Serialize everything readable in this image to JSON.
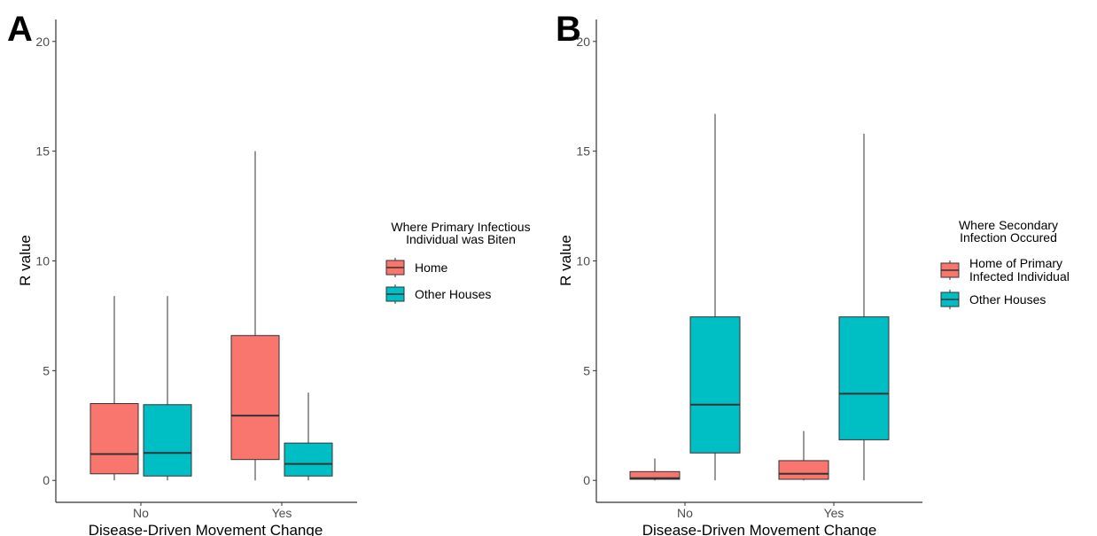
{
  "chart_data": [
    {
      "type": "box",
      "panel_label": "A",
      "xlabel": "Disease-Driven Movement Change",
      "ylabel": "R value",
      "categories": [
        "No",
        "Yes"
      ],
      "ylim": [
        -1,
        21
      ],
      "yticks": [
        0,
        5,
        10,
        15,
        20
      ],
      "legend_title": [
        "Where Primary Infectious",
        "Individual was Biten"
      ],
      "legend_position": "right",
      "grid": false,
      "series": [
        {
          "name": [
            "Home"
          ],
          "color": "#F8766D",
          "boxes": [
            {
              "category": "No",
              "min": 0,
              "q1": 0.3,
              "median": 1.2,
              "q3": 3.5,
              "max": 8.4
            },
            {
              "category": "Yes",
              "min": 0,
              "q1": 0.95,
              "median": 2.95,
              "q3": 6.6,
              "max": 15.0
            }
          ]
        },
        {
          "name": [
            "Other Houses"
          ],
          "color": "#00BFC4",
          "boxes": [
            {
              "category": "No",
              "min": 0,
              "q1": 0.2,
              "median": 1.25,
              "q3": 3.45,
              "max": 8.4
            },
            {
              "category": "Yes",
              "min": 0,
              "q1": 0.2,
              "median": 0.75,
              "q3": 1.7,
              "max": 4.0
            }
          ]
        }
      ]
    },
    {
      "type": "box",
      "panel_label": "B",
      "xlabel": "Disease-Driven Movement Change",
      "ylabel": "R value",
      "categories": [
        "No",
        "Yes"
      ],
      "ylim": [
        -1,
        21
      ],
      "yticks": [
        0,
        5,
        10,
        15,
        20
      ],
      "legend_title": [
        "Where Secondary",
        "Infection Occured"
      ],
      "legend_position": "right",
      "grid": false,
      "series": [
        {
          "name": [
            "Home of Primary",
            "Infected Individual"
          ],
          "color": "#F8766D",
          "boxes": [
            {
              "category": "No",
              "min": 0,
              "q1": 0.05,
              "median": 0.1,
              "q3": 0.4,
              "max": 1.0
            },
            {
              "category": "Yes",
              "min": 0,
              "q1": 0.05,
              "median": 0.3,
              "q3": 0.9,
              "max": 2.25
            }
          ]
        },
        {
          "name": [
            "Other Houses"
          ],
          "color": "#00BFC4",
          "boxes": [
            {
              "category": "No",
              "min": 0,
              "q1": 1.25,
              "median": 3.45,
              "q3": 7.45,
              "max": 16.7
            },
            {
              "category": "Yes",
              "min": 0,
              "q1": 1.85,
              "median": 3.95,
              "q3": 7.45,
              "max": 15.8
            }
          ]
        }
      ]
    }
  ]
}
